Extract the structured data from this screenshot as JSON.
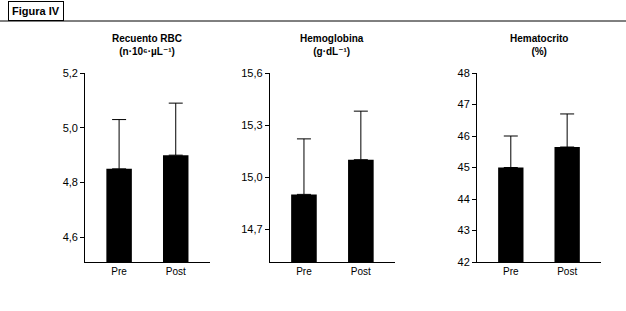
{
  "figure_label": "Figura IV",
  "chart_data": [
    {
      "type": "bar",
      "title": "Recuento RBC\n(n·10⁶·µL⁻¹)",
      "categories": [
        "Pre",
        "Post"
      ],
      "values": [
        4.85,
        4.9
      ],
      "errors": [
        0.18,
        0.19
      ],
      "color": "#000000",
      "ylim": [
        4.51,
        5.2
      ],
      "yticks": [
        {
          "value": 4.6,
          "label": "4,6"
        },
        {
          "value": 4.8,
          "label": "4,8"
        },
        {
          "value": 5.0,
          "label": "5,0"
        },
        {
          "value": 5.2,
          "label": "5,2"
        }
      ],
      "grid": false
    },
    {
      "type": "bar",
      "title": "Hemoglobina\n(g·dL⁻¹)",
      "categories": [
        "Pre",
        "Post"
      ],
      "values": [
        14.9,
        15.1
      ],
      "errors": [
        0.32,
        0.28
      ],
      "color": "#000000",
      "ylim": [
        14.51,
        15.6
      ],
      "yticks": [
        {
          "value": 14.7,
          "label": "14,7"
        },
        {
          "value": 15.0,
          "label": "15,0"
        },
        {
          "value": 15.3,
          "label": "15,3"
        },
        {
          "value": 15.6,
          "label": "15,6"
        }
      ],
      "grid": false
    },
    {
      "type": "bar",
      "title": "Hematocrito\n(%)",
      "categories": [
        "Pre",
        "Post"
      ],
      "values": [
        45.0,
        45.65
      ],
      "errors": [
        1.0,
        1.05
      ],
      "color": "#000000",
      "ylim": [
        42,
        48
      ],
      "yticks": [
        42,
        43,
        44,
        45,
        46,
        47,
        48
      ],
      "grid": false
    }
  ]
}
